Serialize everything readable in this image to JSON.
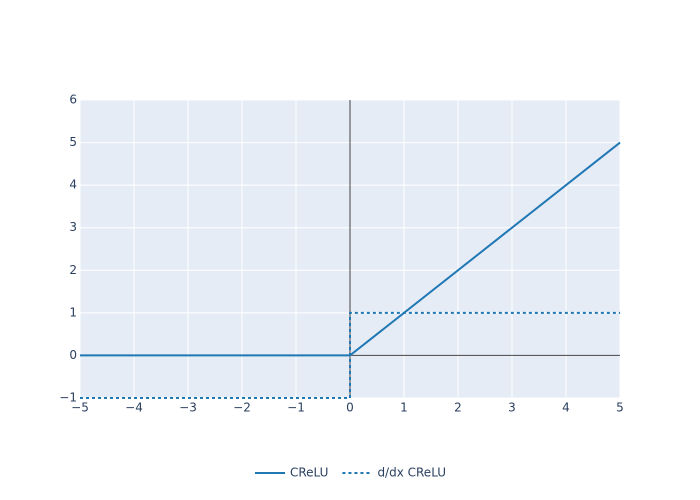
{
  "chart_data": {
    "type": "line",
    "series": [
      {
        "name": "CReLU",
        "color": "#1f77b4",
        "dash": "solid",
        "x": [
          -5,
          0,
          5
        ],
        "values": [
          0,
          0,
          5
        ]
      },
      {
        "name": "d/dx CReLU",
        "color": "#1f77b4",
        "dash": "dot",
        "x": [
          -5,
          0,
          0,
          5
        ],
        "values": [
          -1,
          -1,
          1,
          1
        ]
      }
    ],
    "xlim": [
      -5,
      5
    ],
    "xticks": [
      {
        "value": -5,
        "label": "−5"
      },
      {
        "value": -4,
        "label": "−4"
      },
      {
        "value": -3,
        "label": "−3"
      },
      {
        "value": -2,
        "label": "−2"
      },
      {
        "value": -1,
        "label": "−1"
      },
      0,
      1,
      2,
      3,
      4,
      5
    ],
    "ylim": [
      -1,
      6
    ],
    "yticks": [
      {
        "value": -1,
        "label": "−1"
      },
      0,
      1,
      2,
      3,
      4,
      5,
      6
    ],
    "grid": true,
    "zeroline": true,
    "legend": "bottom"
  }
}
